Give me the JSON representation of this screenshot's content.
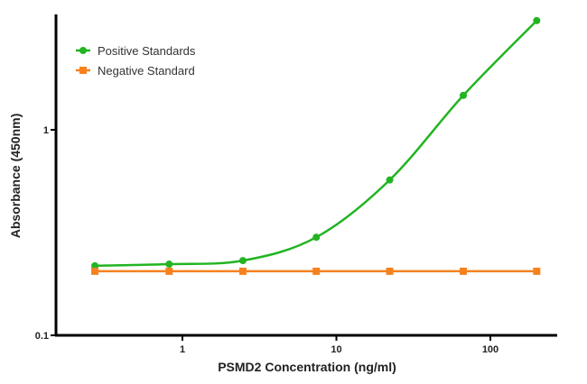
{
  "chart_data": {
    "type": "line",
    "title": "",
    "xlabel": "PSMD2 Concentration (ng/ml)",
    "ylabel": "Absorbance (450nm)",
    "x_scale": "log",
    "y_scale": "log",
    "xlim": [
      0.2,
      300
    ],
    "ylim": [
      0.1,
      3.5
    ],
    "x_ticks": [
      {
        "value": 1,
        "label": "1"
      },
      {
        "value": 10,
        "label": "10"
      },
      {
        "value": 100,
        "label": "100"
      }
    ],
    "y_ticks": [
      {
        "value": 0.1,
        "label": "0.1"
      },
      {
        "value": 1,
        "label": "1"
      }
    ],
    "grid": false,
    "legend_position": "top-left",
    "x": [
      0.27,
      0.82,
      2.47,
      7.4,
      22.2,
      66.7,
      200
    ],
    "series": [
      {
        "name": "Positive Standards",
        "color": "#22b422",
        "marker": "circle",
        "fitted_curve": true,
        "values": [
          0.218,
          0.222,
          0.231,
          0.3,
          0.57,
          1.47,
          3.4
        ]
      },
      {
        "name": "Negative Standard",
        "color": "#f5821f",
        "marker": "square",
        "fitted_curve": false,
        "values": [
          0.205,
          0.205,
          0.205,
          0.205,
          0.205,
          0.205,
          0.205
        ]
      }
    ]
  }
}
